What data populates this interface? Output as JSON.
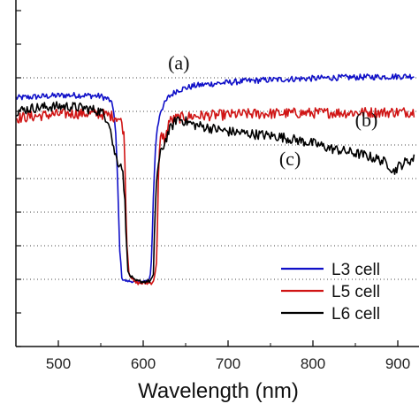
{
  "chart_data": {
    "type": "line",
    "xlabel": "Wavelength (nm)",
    "ylabel": "",
    "xlim": [
      450,
      925
    ],
    "ylim": [
      0,
      100
    ],
    "x_ticks": [
      500,
      600,
      700,
      800,
      900
    ],
    "x_tick_labels": [
      "500",
      "600",
      "700",
      "800",
      "900"
    ],
    "y_grid": [
      20,
      30,
      40,
      50,
      60,
      70,
      80
    ],
    "grid": "horizontal dotted",
    "legend_position": "bottom-right",
    "series": [
      {
        "name": "L3 cell",
        "color": "#1010c8",
        "x": [
          450,
          470,
          490,
          510,
          530,
          550,
          560,
          565,
          568,
          570,
          572,
          575,
          580,
          590,
          600,
          605,
          608,
          610,
          612,
          615,
          620,
          630,
          640,
          660,
          680,
          700,
          720,
          740,
          760,
          780,
          800,
          820,
          840,
          860,
          880,
          900,
          920
        ],
        "y": [
          74,
          74.3,
          74.6,
          74.8,
          74.8,
          74.5,
          73.5,
          71,
          62,
          48,
          30,
          20,
          19.5,
          19.3,
          19.4,
          19.6,
          20,
          27,
          45,
          62,
          70,
          74.3,
          76.3,
          77.6,
          78.2,
          78.6,
          79,
          79.3,
          79.5,
          79.7,
          79.8,
          80,
          80.1,
          80.2,
          80.3,
          80.4,
          80.5
        ]
      },
      {
        "name": "L5 cell",
        "color": "#d01515",
        "x": [
          450,
          470,
          490,
          510,
          530,
          550,
          560,
          570,
          575,
          578,
          580,
          583,
          590,
          600,
          610,
          613,
          616,
          618,
          620,
          623,
          626,
          630,
          640,
          660,
          680,
          700,
          720,
          740,
          760,
          780,
          800,
          820,
          840,
          860,
          880,
          900,
          920
        ],
        "y": [
          68,
          68.5,
          69,
          69.3,
          69.4,
          69.2,
          68.8,
          68.2,
          66.5,
          61.5,
          35,
          22,
          19,
          18.8,
          19,
          20,
          26,
          50,
          62,
          63,
          61,
          67,
          68,
          68.6,
          68.8,
          69,
          69.2,
          69.3,
          69.4,
          69.5,
          69.5,
          69.6,
          69.6,
          69.7,
          69.7,
          69.8,
          69.8
        ]
      },
      {
        "name": "L6 cell",
        "color": "#000000",
        "x": [
          450,
          470,
          490,
          510,
          530,
          550,
          560,
          565,
          570,
          575,
          578,
          582,
          590,
          600,
          608,
          612,
          614,
          616,
          620,
          630,
          640,
          650,
          660,
          670,
          680,
          690,
          700,
          720,
          740,
          760,
          780,
          800,
          820,
          840,
          860,
          880,
          890,
          895,
          900,
          910,
          920
        ],
        "y": [
          70,
          71,
          71.4,
          71.5,
          71,
          70,
          67,
          59,
          55,
          54,
          45,
          22,
          19.5,
          19.3,
          19.5,
          21,
          40,
          51,
          57,
          64,
          68,
          67,
          66,
          65.5,
          65,
          64.5,
          64,
          63.5,
          63,
          62.5,
          61.5,
          60.5,
          59,
          58,
          57,
          55.5,
          54,
          52,
          53.5,
          55,
          56
        ]
      }
    ],
    "annotations": [
      {
        "text": "(a)",
        "x": 642,
        "y": 82.5
      },
      {
        "text": "(b)",
        "x": 863,
        "y": 65.5
      },
      {
        "text": "(c)",
        "x": 773,
        "y": 54
      }
    ],
    "legend": [
      "L3 cell",
      "L5 cell",
      "L6 cell"
    ]
  }
}
